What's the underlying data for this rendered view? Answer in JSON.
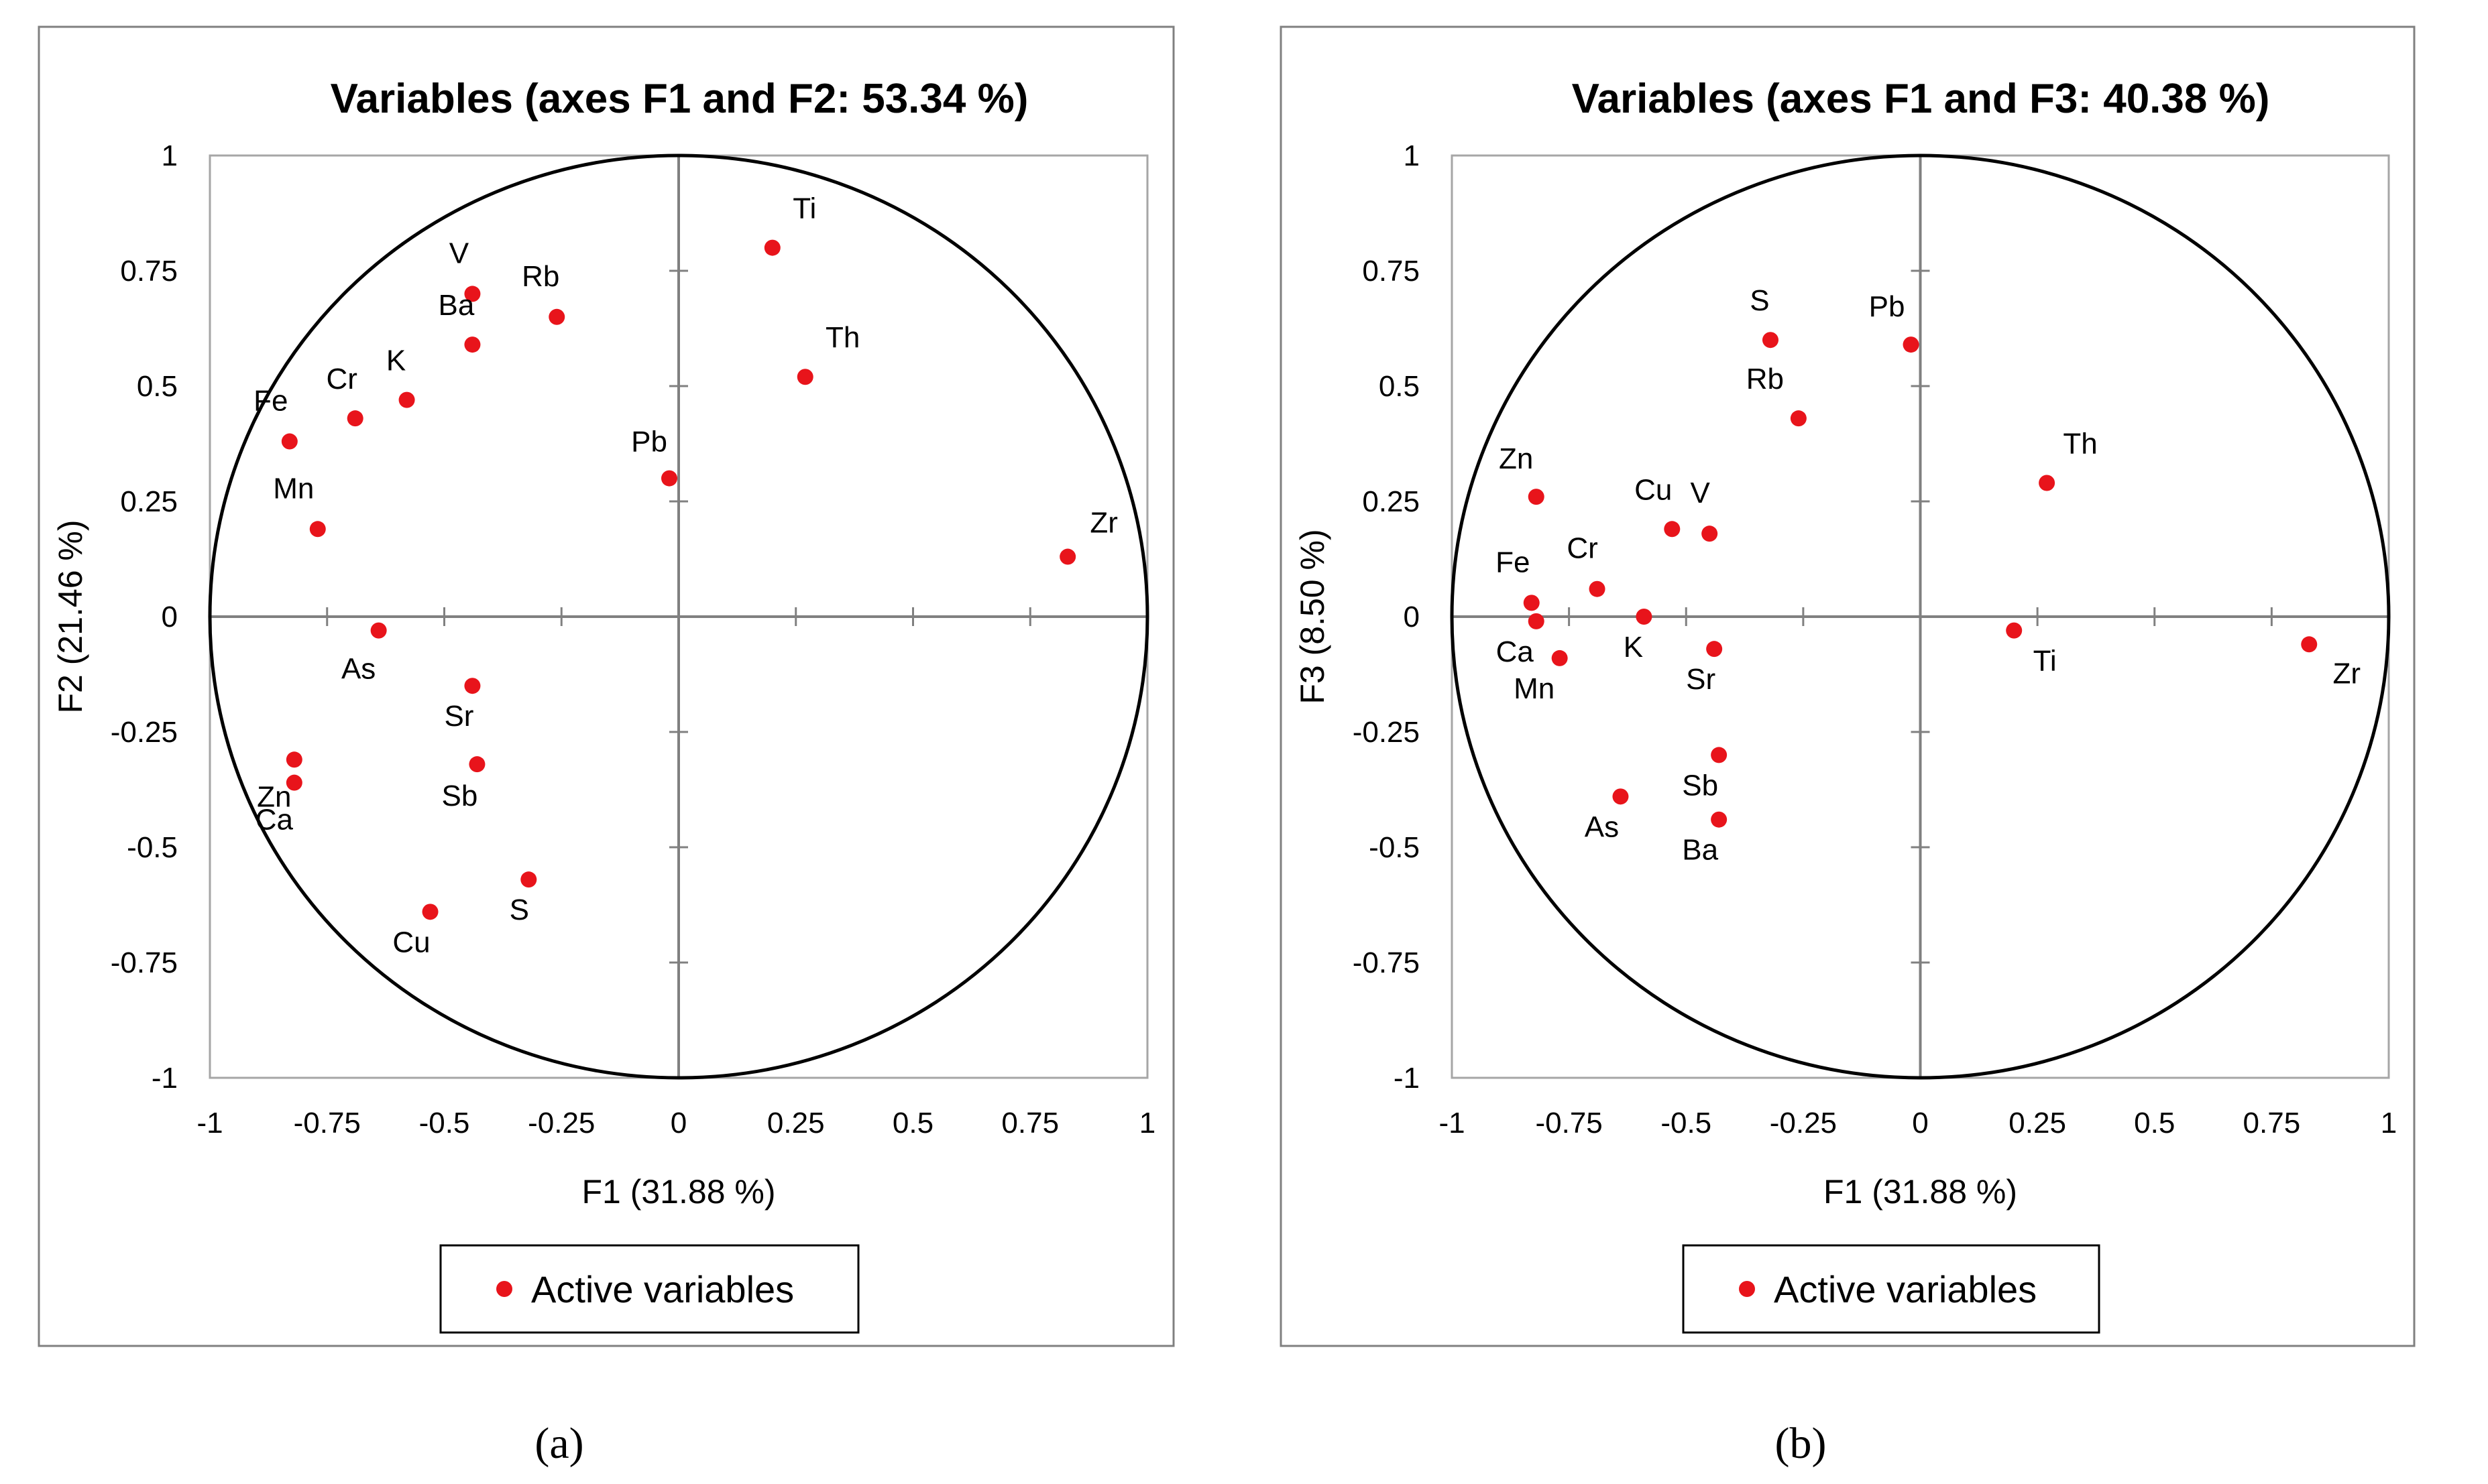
{
  "chart_data": [
    {
      "type": "scatter",
      "title": "Variables (axes F1 and F2: 53.34 %)",
      "xlabel": "F1 (31.88  %)",
      "ylabel": "F2 (21.46  %)",
      "xlim": [
        -1,
        1
      ],
      "ylim": [
        -1,
        1
      ],
      "xticks": [
        "-1",
        "-0.75",
        "-0.5",
        "-0.25",
        "0",
        "0.25",
        "0.5",
        "0.75",
        "1"
      ],
      "yticks": [
        "1",
        "0.75",
        "0.5",
        "0.25",
        "0",
        "-0.25",
        "-0.5",
        "-0.75",
        "-1"
      ],
      "legend": "Active variables",
      "caption": "(a)",
      "color": "#e8141b",
      "points": [
        {
          "label": "Ti",
          "x": 0.2,
          "y": 0.8
        },
        {
          "label": "V",
          "x": -0.44,
          "y": 0.7
        },
        {
          "label": "Rb",
          "x": -0.26,
          "y": 0.65
        },
        {
          "label": "Ba",
          "x": -0.44,
          "y": 0.59
        },
        {
          "label": "Th",
          "x": 0.27,
          "y": 0.52
        },
        {
          "label": "K",
          "x": -0.58,
          "y": 0.47
        },
        {
          "label": "Cr",
          "x": -0.69,
          "y": 0.43
        },
        {
          "label": "Fe",
          "x": -0.83,
          "y": 0.38
        },
        {
          "label": "Pb",
          "x": -0.02,
          "y": 0.3
        },
        {
          "label": "Mn",
          "x": -0.77,
          "y": 0.19
        },
        {
          "label": "Zr",
          "x": 0.83,
          "y": 0.13
        },
        {
          "label": "As",
          "x": -0.64,
          "y": -0.03
        },
        {
          "label": "Sr",
          "x": -0.44,
          "y": -0.15
        },
        {
          "label": "Zn",
          "x": -0.82,
          "y": -0.31
        },
        {
          "label": "Sb",
          "x": -0.43,
          "y": -0.32
        },
        {
          "label": "Ca",
          "x": -0.82,
          "y": -0.36
        },
        {
          "label": "S",
          "x": -0.32,
          "y": -0.57
        },
        {
          "label": "Cu",
          "x": -0.53,
          "y": -0.64
        }
      ]
    },
    {
      "type": "scatter",
      "title": "Variables (axes F1 and F3: 40.38 %)",
      "xlabel": "F1 (31.88  %)",
      "ylabel": "F3 (8.50  %)",
      "xlim": [
        -1,
        1
      ],
      "ylim": [
        -1,
        1
      ],
      "xticks": [
        "-1",
        "-0.75",
        "-0.5",
        "-0.25",
        "0",
        "0.25",
        "0.5",
        "0.75",
        "1"
      ],
      "yticks": [
        "1",
        "0.75",
        "0.5",
        "0.25",
        "0",
        "-0.25",
        "-0.5",
        "-0.75",
        "-1"
      ],
      "legend": "Active variables",
      "caption": "(b)",
      "color": "#e8141b",
      "points": [
        {
          "label": "S",
          "x": -0.32,
          "y": 0.6
        },
        {
          "label": "Pb",
          "x": -0.02,
          "y": 0.59
        },
        {
          "label": "Rb",
          "x": -0.26,
          "y": 0.43
        },
        {
          "label": "Th",
          "x": 0.27,
          "y": 0.29
        },
        {
          "label": "Zn",
          "x": -0.82,
          "y": 0.26
        },
        {
          "label": "Cu",
          "x": -0.53,
          "y": 0.19
        },
        {
          "label": "V",
          "x": -0.45,
          "y": 0.18
        },
        {
          "label": "Cr",
          "x": -0.69,
          "y": 0.06
        },
        {
          "label": "Fe",
          "x": -0.83,
          "y": 0.03
        },
        {
          "label": "K",
          "x": -0.59,
          "y": 0.0
        },
        {
          "label": "Ca",
          "x": -0.82,
          "y": -0.01
        },
        {
          "label": "Ti",
          "x": 0.2,
          "y": -0.03
        },
        {
          "label": "Zr",
          "x": 0.83,
          "y": -0.06
        },
        {
          "label": "Sr",
          "x": -0.44,
          "y": -0.07
        },
        {
          "label": "Mn",
          "x": -0.77,
          "y": -0.09
        },
        {
          "label": "Sb",
          "x": -0.43,
          "y": -0.3
        },
        {
          "label": "As",
          "x": -0.64,
          "y": -0.39
        },
        {
          "label": "Ba",
          "x": -0.43,
          "y": -0.44
        }
      ]
    }
  ]
}
